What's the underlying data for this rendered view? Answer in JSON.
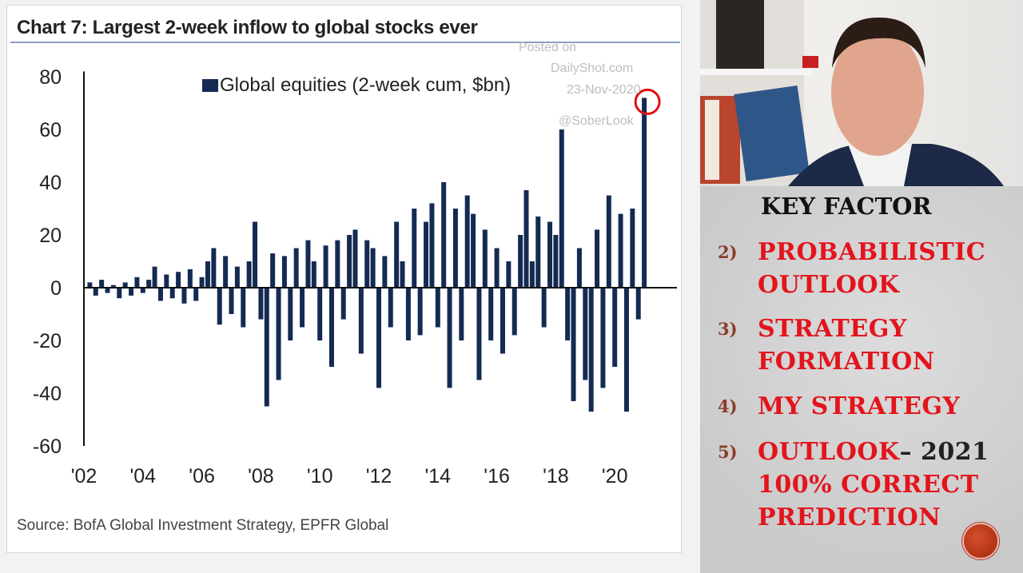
{
  "chart_data": {
    "type": "bar",
    "title": "Chart 7: Largest 2-week inflow to global stocks ever",
    "legend": "Global equities (2-week cum, $bn)",
    "legend_placement": "top-center",
    "ylim": [
      -60,
      80
    ],
    "yticks": [
      "80",
      "60",
      "40",
      "20",
      "0",
      "-20",
      "-40",
      "-60"
    ],
    "ytick_values": [
      80,
      60,
      40,
      20,
      0,
      -20,
      -40,
      -60
    ],
    "xlim": [
      2002,
      2022
    ],
    "xticks": [
      "'02",
      "'04",
      "'06",
      "'08",
      "'10",
      "'12",
      "'14",
      "'16",
      "'18",
      "'20"
    ],
    "xtick_values": [
      2002,
      2004,
      2006,
      2008,
      2010,
      2012,
      2014,
      2016,
      2018,
      2020
    ],
    "x_start": 2002.2,
    "x_step": 0.2,
    "values": [
      2,
      -3,
      3,
      -2,
      1,
      -4,
      2,
      -3,
      4,
      -2,
      3,
      8,
      -5,
      5,
      -4,
      6,
      -6,
      7,
      -5,
      4,
      10,
      15,
      -14,
      12,
      -10,
      8,
      -15,
      10,
      25,
      -12,
      -45,
      13,
      -35,
      12,
      -20,
      15,
      -15,
      18,
      10,
      -20,
      16,
      -30,
      18,
      -12,
      20,
      22,
      -25,
      18,
      15,
      -38,
      12,
      -15,
      25,
      10,
      -20,
      30,
      -18,
      25,
      32,
      -15,
      40,
      -38,
      30,
      -20,
      35,
      28,
      -35,
      22,
      -20,
      15,
      -25,
      10,
      -18,
      20,
      37,
      10,
      27,
      -15,
      25,
      20,
      60,
      -20,
      -43,
      15,
      -35,
      -47,
      22,
      -38,
      35,
      -30,
      28,
      -47,
      30,
      -12,
      72
    ],
    "bar_color": "#142a52",
    "highlight_color": "#e01010",
    "source": "Source: BofA Global Investment Strategy, EPFR Global",
    "watermark": [
      "Posted on",
      "DailyShot.com",
      "23-Nov-2020",
      "@SoberLook"
    ]
  },
  "slide": {
    "heading": "KEY FACTOR",
    "items": [
      {
        "num": "2)",
        "lines": [
          "PROBABILISTIC",
          "OUTLOOK"
        ]
      },
      {
        "num": "3)",
        "lines": [
          "STRATEGY",
          "FORMATION"
        ]
      },
      {
        "num": "4)",
        "lines": [
          "MY STRATEGY"
        ]
      },
      {
        "num": "5)",
        "lines": [
          "OUTLOOK",
          "– 2021",
          "100% CORRECT",
          "PREDICTION"
        ]
      }
    ]
  }
}
